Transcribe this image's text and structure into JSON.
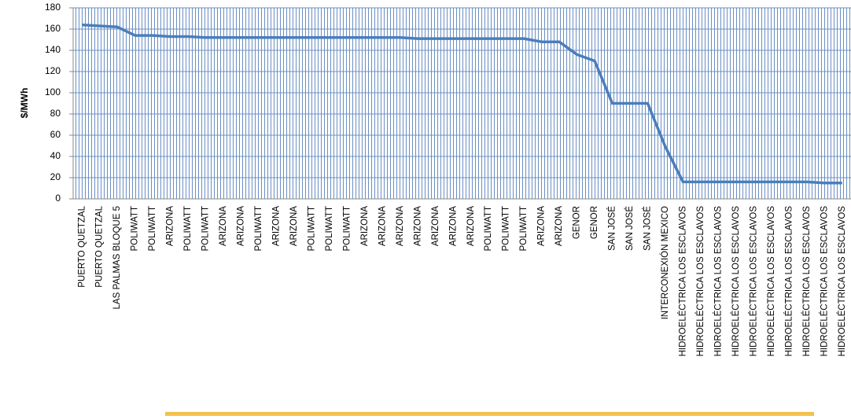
{
  "chart_data": {
    "type": "line",
    "y_label": "$/MWh",
    "categories": [
      "PUERTO QUETZAL",
      "PUERTO QUETZAL",
      "LAS PALMAS BLOQUE 5",
      "POLIWATT",
      "POLIWATT",
      "ARIZONA",
      "POLIWATT",
      "POLIWATT",
      "ARIZONA",
      "ARIZONA",
      "POLIWATT",
      "ARIZONA",
      "ARIZONA",
      "POLIWATT",
      "POLIWATT",
      "POLIWATT",
      "ARIZONA",
      "ARIZONA",
      "ARIZONA",
      "ARIZONA",
      "ARIZONA",
      "ARIZONA",
      "ARIZONA",
      "POLIWATT",
      "POLIWATT",
      "POLIWATT",
      "ARIZONA",
      "ARIZONA",
      "GENOR",
      "GENOR",
      "SAN JOSÉ",
      "SAN JOSÉ",
      "SAN JOSÉ",
      "INTERCONEXIÓN MEXICO",
      "HIDROELÉCTRICA LOS ESCLAVOS",
      "HIDROELÉCTRICA LOS ESCLAVOS",
      "HIDROELÉCTRICA LOS ESCLAVOS",
      "HIDROELÉCTRICA LOS ESCLAVOS",
      "HIDROELÉCTRICA LOS ESCLAVOS",
      "HIDROELÉCTRICA LOS ESCLAVOS",
      "HIDROELÉCTRICA LOS ESCLAVOS",
      "HIDROELÉCTRICA LOS ESCLAVOS",
      "HIDROELÉCTRICA LOS ESCLAVOS",
      "HIDROELÉCTRICA LOS ESCLAVOS"
    ],
    "values": [
      164,
      163,
      162,
      154,
      154,
      153,
      153,
      152,
      152,
      152,
      152,
      152,
      152,
      152,
      152,
      152,
      152,
      152,
      152,
      151,
      151,
      151,
      151,
      151,
      151,
      151,
      148,
      148,
      136,
      130,
      90,
      90,
      90,
      49,
      16,
      16,
      16,
      16,
      16,
      16,
      16,
      16,
      15,
      15
    ],
    "color": "#4a7ebb",
    "ylim": [
      0,
      180
    ],
    "yticks": [
      0,
      20,
      40,
      60,
      80,
      100,
      120,
      140,
      160,
      180
    ],
    "grid": true
  }
}
